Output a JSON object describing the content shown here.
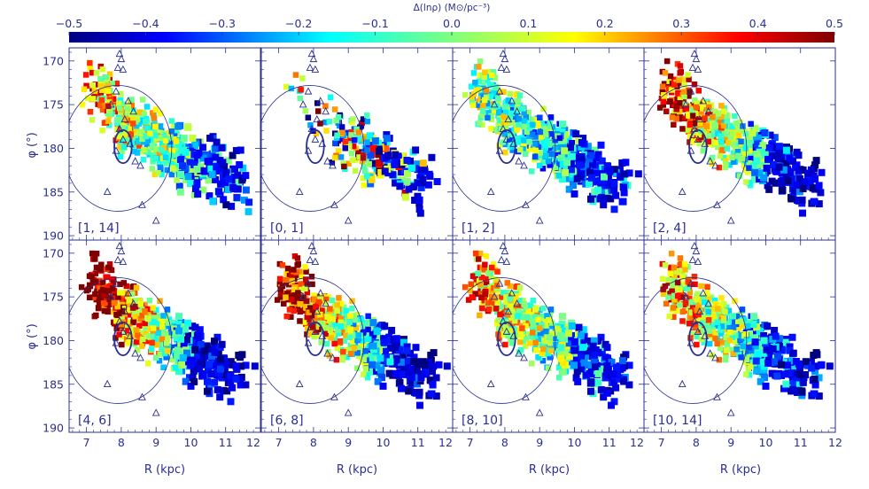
{
  "colorbar": {
    "label": "Δ(lnρ) (M⊙/pc⁻³)",
    "ticks": [
      "−0.5",
      "−0.4",
      "−0.3",
      "−0.2",
      "−0.1",
      "0.0",
      "0.1",
      "0.2",
      "0.3",
      "0.4",
      "0.5"
    ],
    "range": [
      -0.5,
      0.5
    ],
    "colormap": [
      "#00007f",
      "#0000ff",
      "#007fff",
      "#00ffff",
      "#7fff7f",
      "#ffff00",
      "#ff7f00",
      "#ff0000",
      "#7f0000"
    ]
  },
  "axes": {
    "xlabel": "R (kpc)",
    "ylabel": "φ (°)",
    "xticks": [
      "7",
      "8",
      "9",
      "10",
      "11",
      "12"
    ],
    "yticks": [
      "170",
      "175",
      "180",
      "185",
      "190"
    ],
    "ink_color": "#2a2f8f"
  },
  "chart_data": {
    "type": "heatmap",
    "description_units": "Galactocentric radius R (kpc) vs azimuth φ (deg); cell color = Δ(lnρ)",
    "xlim": [
      6.5,
      12
    ],
    "ylim": [
      190.5,
      168.5
    ],
    "colorbar_range": [
      -0.5,
      0.5
    ],
    "grid": false,
    "panels": [
      {
        "label": "[1, 14]",
        "dominant": "mixed, near zero"
      },
      {
        "label": "[0, 1]",
        "dominant": "mixed, strong positive and negative"
      },
      {
        "label": "[1, 2]",
        "dominant": "mixed, mostly negative"
      },
      {
        "label": "[2, 4]",
        "dominant": "positive near R≈8, negative outskirts"
      },
      {
        "label": "[4, 6]",
        "dominant": "strong positive near R≈7.5-8.5"
      },
      {
        "label": "[6, 8]",
        "dominant": "positive inner, negative outer"
      },
      {
        "label": "[8, 10]",
        "dominant": "near zero, slightly positive"
      },
      {
        "label": "[10, 14]",
        "dominant": "mixed, negative at large R"
      }
    ],
    "big_ellipse": {
      "center_R": 7.9,
      "center_phi": 180.0,
      "semi_R": 1.55,
      "semi_phi": 7.2
    },
    "small_ellipse": {
      "center_R": 8.05,
      "center_phi": 179.8,
      "semi_R": 0.25,
      "semi_phi": 1.9
    },
    "triangles": [
      [
        7.95,
        169.2
      ],
      [
        8.0,
        169.8
      ],
      [
        7.9,
        170.8
      ],
      [
        8.05,
        171.0
      ],
      [
        7.85,
        173.5
      ],
      [
        8.2,
        174.6
      ],
      [
        7.7,
        175.0
      ],
      [
        8.35,
        175.8
      ],
      [
        8.1,
        176.7
      ],
      [
        7.95,
        177.8
      ],
      [
        8.05,
        179.0
      ],
      [
        8.25,
        179.5
      ],
      [
        7.85,
        180.3
      ],
      [
        8.4,
        181.5
      ],
      [
        8.55,
        182.0
      ],
      [
        7.6,
        185.0
      ],
      [
        8.6,
        186.5
      ],
      [
        9.0,
        188.3
      ]
    ]
  }
}
